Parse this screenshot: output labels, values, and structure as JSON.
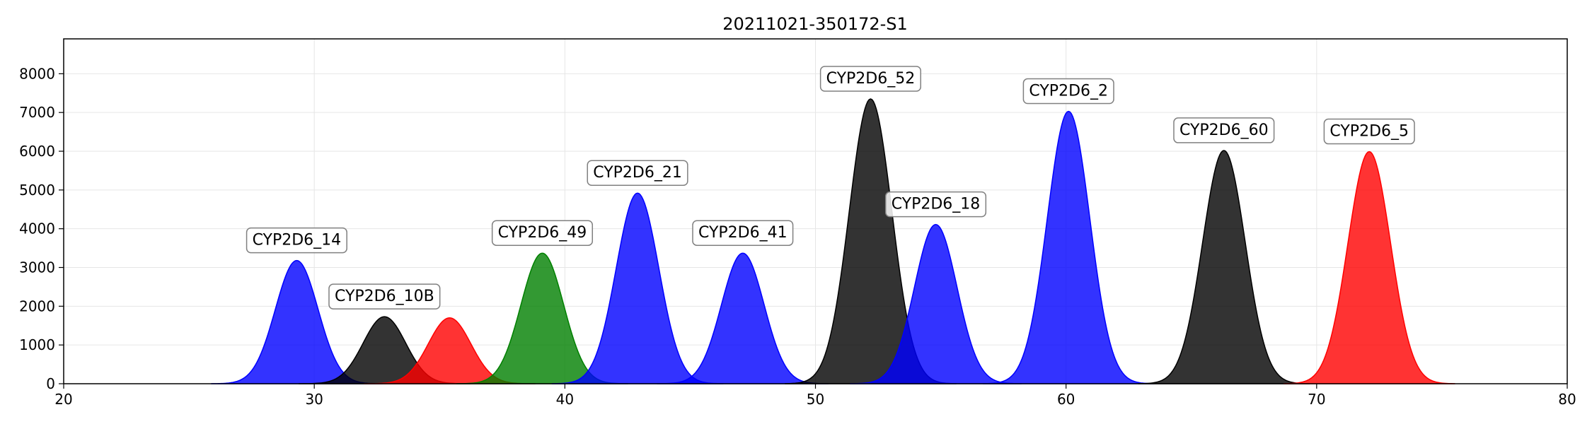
{
  "chart_data": {
    "type": "area",
    "title": "20211021-350172-S1",
    "xlabel": "",
    "ylabel": "",
    "xlim": [
      20,
      80
    ],
    "ylim": [
      0,
      8900
    ],
    "x_ticks": [
      20,
      30,
      40,
      50,
      60,
      70,
      80
    ],
    "y_ticks": [
      0,
      1000,
      2000,
      3000,
      4000,
      5000,
      6000,
      7000,
      8000
    ],
    "grid": true,
    "peaks": [
      {
        "center": 29.3,
        "height": 3180,
        "color": "#0000ff",
        "label": "CYP2D6_14"
      },
      {
        "center": 32.8,
        "height": 1730,
        "color": "#000000",
        "label": "CYP2D6_10B"
      },
      {
        "center": 35.4,
        "height": 1700,
        "color": "#ff0000",
        "label": ""
      },
      {
        "center": 39.1,
        "height": 3370,
        "color": "#008000",
        "label": "CYP2D6_49"
      },
      {
        "center": 42.9,
        "height": 4920,
        "color": "#0000ff",
        "label": "CYP2D6_21"
      },
      {
        "center": 47.1,
        "height": 3370,
        "color": "#0000ff",
        "label": "CYP2D6_41"
      },
      {
        "center": 52.2,
        "height": 7350,
        "color": "#000000",
        "label": "CYP2D6_52"
      },
      {
        "center": 54.8,
        "height": 4110,
        "color": "#0000ff",
        "label": "CYP2D6_18"
      },
      {
        "center": 60.1,
        "height": 7030,
        "color": "#0000ff",
        "label": "CYP2D6_2"
      },
      {
        "center": 66.3,
        "height": 6020,
        "color": "#000000",
        "label": "CYP2D6_60"
      },
      {
        "center": 72.1,
        "height": 5990,
        "color": "#ff0000",
        "label": "CYP2D6_5"
      }
    ]
  }
}
